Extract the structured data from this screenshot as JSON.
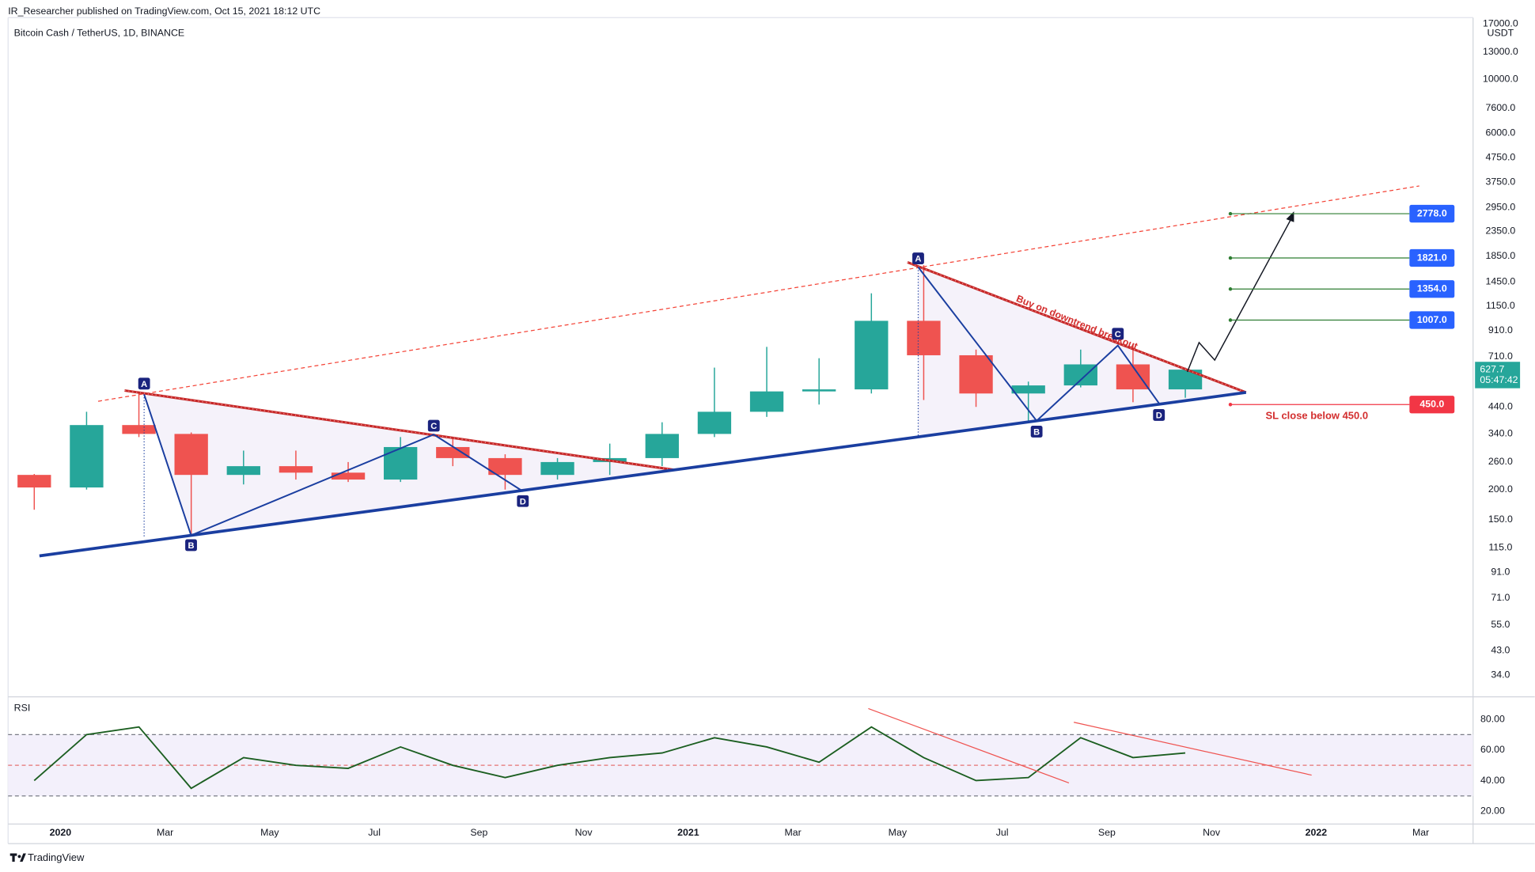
{
  "header": {
    "published": "IR_Researcher published on TradingView.com, Oct 15, 2021 18:12 UTC",
    "symbol": "Bitcoin Cash / TetherUS, 1D, BINANCE",
    "logo": "TradingView"
  },
  "chart_data": {
    "type": "candlestick",
    "x": [
      "2019-12",
      "2020-01",
      "2020-02",
      "2020-03",
      "2020-04",
      "2020-05",
      "2020-06",
      "2020-07",
      "2020-08",
      "2020-09",
      "2020-10",
      "2020-11",
      "2020-12",
      "2021-01",
      "2021-02",
      "2021-03",
      "2021-04",
      "2021-05",
      "2021-06",
      "2021-07",
      "2021-08",
      "2021-09",
      "2021-10"
    ],
    "open": [
      230,
      204,
      370,
      340,
      230,
      250,
      235,
      220,
      300,
      270,
      230,
      260,
      270,
      340,
      420,
      510,
      520,
      1000,
      720,
      500,
      540,
      660,
      520
    ],
    "high": [
      232,
      420,
      510,
      345,
      290,
      290,
      260,
      330,
      330,
      280,
      270,
      310,
      380,
      640,
      780,
      700,
      1300,
      1700,
      760,
      560,
      760,
      800,
      640
    ],
    "low": [
      165,
      200,
      330,
      130,
      210,
      220,
      215,
      215,
      250,
      200,
      220,
      230,
      250,
      330,
      400,
      450,
      500,
      470,
      440,
      385,
      530,
      460,
      480
    ],
    "close": [
      204,
      370,
      340,
      230,
      250,
      235,
      220,
      300,
      270,
      230,
      260,
      270,
      340,
      420,
      510,
      520,
      1000,
      720,
      500,
      540,
      660,
      520,
      627.7
    ],
    "colors": {
      "up": "#26a69a",
      "down": "#ef5350"
    },
    "log_scale": true,
    "ylim": [
      27.7,
      18030
    ],
    "yticks": [
      {
        "value": 17000,
        "label": "17000.0"
      },
      {
        "value": 13000,
        "label": "13000.0"
      },
      {
        "value": 10000,
        "label": "10000.0"
      },
      {
        "value": 7600,
        "label": "7600.0"
      },
      {
        "value": 6000,
        "label": "6000.0"
      },
      {
        "value": 4750,
        "label": "4750.0"
      },
      {
        "value": 3750,
        "label": "3750.0"
      },
      {
        "value": 2950,
        "label": "2950.0"
      },
      {
        "value": 2350,
        "label": "2350.0"
      },
      {
        "value": 1850,
        "label": "1850.0"
      },
      {
        "value": 1450,
        "label": "1450.0"
      },
      {
        "value": 1150,
        "label": "1150.0"
      },
      {
        "value": 910,
        "label": "910.0"
      },
      {
        "value": 710,
        "label": "710.0"
      },
      {
        "value": 440,
        "label": "440.0"
      },
      {
        "value": 340,
        "label": "340.0"
      },
      {
        "value": 260,
        "label": "260.0"
      },
      {
        "value": 200,
        "label": "200.0"
      },
      {
        "value": 150,
        "label": "150.0"
      },
      {
        "value": 115,
        "label": "115.0"
      },
      {
        "value": 91,
        "label": "91.0"
      },
      {
        "value": 71,
        "label": "71.0"
      },
      {
        "value": 55,
        "label": "55.0"
      },
      {
        "value": 43,
        "label": "43.0"
      },
      {
        "value": 34,
        "label": "34.0"
      }
    ],
    "y_unit": "USDT",
    "xlim": [
      "2019-12",
      "2022-04"
    ],
    "xticks": [
      {
        "value": "2020-01",
        "label": "2020"
      },
      {
        "value": "2020-03",
        "label": "Mar"
      },
      {
        "value": "2020-05",
        "label": "May"
      },
      {
        "value": "2020-07",
        "label": "Jul"
      },
      {
        "value": "2020-09",
        "label": "Sep"
      },
      {
        "value": "2020-11",
        "label": "Nov"
      },
      {
        "value": "2021-01",
        "label": "2021"
      },
      {
        "value": "2021-03",
        "label": "Mar"
      },
      {
        "value": "2021-05",
        "label": "May"
      },
      {
        "value": "2021-07",
        "label": "Jul"
      },
      {
        "value": "2021-09",
        "label": "Sep"
      },
      {
        "value": "2021-11",
        "label": "Nov"
      },
      {
        "value": "2022-01",
        "label": "2022"
      },
      {
        "value": "2022-03",
        "label": "Mar"
      }
    ],
    "last_price": 627.7,
    "countdown": "05:47:42",
    "targets": [
      {
        "value": 2778,
        "label": "2778.0"
      },
      {
        "value": 1821,
        "label": "1821.0"
      },
      {
        "value": 1354,
        "label": "1354.0"
      },
      {
        "value": 1007,
        "label": "1007.0"
      }
    ],
    "stop": {
      "value": 450,
      "label": "450.0",
      "note": "SL close below 450.0"
    },
    "annotation": "Buy on downtrend breakout",
    "pattern_labels": [
      "A",
      "B",
      "C",
      "D",
      "A",
      "B",
      "C",
      "D"
    ],
    "rsi": {
      "title": "RSI",
      "values": [
        40,
        70,
        75,
        35,
        55,
        50,
        48,
        62,
        50,
        42,
        50,
        55,
        58,
        68,
        62,
        52,
        75,
        55,
        40,
        42,
        68,
        55,
        58
      ],
      "color": "#1b5e20",
      "ylim": [
        11.7,
        94
      ],
      "yticks": [
        {
          "value": 80,
          "label": "80.00"
        },
        {
          "value": 60,
          "label": "60.00"
        },
        {
          "value": 40,
          "label": "40.00"
        },
        {
          "value": 20,
          "label": "20.00"
        }
      ],
      "levels": [
        70,
        50,
        30
      ]
    }
  }
}
